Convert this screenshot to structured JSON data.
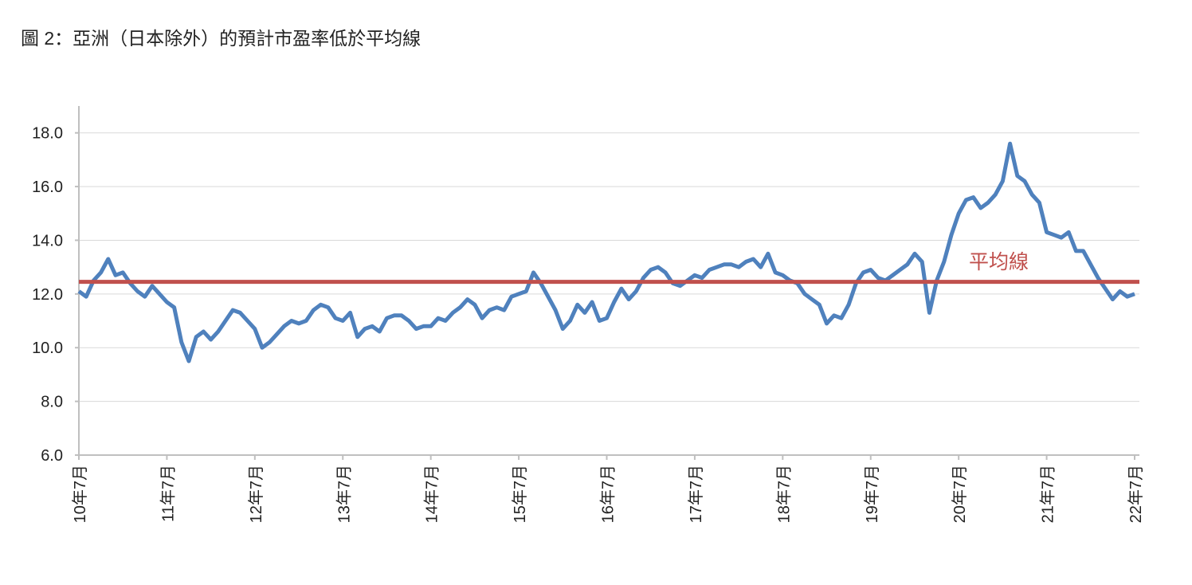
{
  "chart_data": {
    "type": "line",
    "title": "圖 2：亞洲（日本除外）的預計市盈率低於平均線",
    "categories": [
      "10年7月",
      null,
      null,
      null,
      null,
      null,
      null,
      null,
      null,
      null,
      null,
      null,
      "11年7月",
      null,
      null,
      null,
      null,
      null,
      null,
      null,
      null,
      null,
      null,
      null,
      "12年7月",
      null,
      null,
      null,
      null,
      null,
      null,
      null,
      null,
      null,
      null,
      null,
      "13年7月",
      null,
      null,
      null,
      null,
      null,
      null,
      null,
      null,
      null,
      null,
      null,
      "14年7月",
      null,
      null,
      null,
      null,
      null,
      null,
      null,
      null,
      null,
      null,
      null,
      "15年7月",
      null,
      null,
      null,
      null,
      null,
      null,
      null,
      null,
      null,
      null,
      null,
      "16年7月",
      null,
      null,
      null,
      null,
      null,
      null,
      null,
      null,
      null,
      null,
      null,
      "17年7月",
      null,
      null,
      null,
      null,
      null,
      null,
      null,
      null,
      null,
      null,
      null,
      "18年7月",
      null,
      null,
      null,
      null,
      null,
      null,
      null,
      null,
      null,
      null,
      null,
      "19年7月",
      null,
      null,
      null,
      null,
      null,
      null,
      null,
      null,
      null,
      null,
      null,
      "20年7月",
      null,
      null,
      null,
      null,
      null,
      null,
      null,
      null,
      null,
      null,
      null,
      "21年7月",
      null,
      null,
      null,
      null,
      null,
      null,
      null,
      null,
      null,
      null,
      null,
      "22年7月"
    ],
    "values": [
      12.1,
      11.9,
      12.5,
      12.8,
      13.3,
      12.7,
      12.8,
      12.4,
      12.1,
      11.9,
      12.3,
      12.0,
      11.7,
      11.5,
      10.2,
      9.5,
      10.4,
      10.6,
      10.3,
      10.6,
      11.0,
      11.4,
      11.3,
      11.0,
      10.7,
      10.0,
      10.2,
      10.5,
      10.8,
      11.0,
      10.9,
      11.0,
      11.4,
      11.6,
      11.5,
      11.1,
      11.0,
      11.3,
      10.4,
      10.7,
      10.8,
      10.6,
      11.1,
      11.2,
      11.2,
      11.0,
      10.7,
      10.8,
      10.8,
      11.1,
      11.0,
      11.3,
      11.5,
      11.8,
      11.6,
      11.1,
      11.4,
      11.5,
      11.4,
      11.9,
      12.0,
      12.1,
      12.8,
      12.4,
      11.9,
      11.4,
      10.7,
      11.0,
      11.6,
      11.3,
      11.7,
      11.0,
      11.1,
      11.7,
      12.2,
      11.8,
      12.1,
      12.6,
      12.9,
      13.0,
      12.8,
      12.4,
      12.3,
      12.5,
      12.7,
      12.6,
      12.9,
      13.0,
      13.1,
      13.1,
      13.0,
      13.2,
      13.3,
      13.0,
      13.5,
      12.8,
      12.7,
      12.5,
      12.4,
      12.0,
      11.8,
      11.6,
      10.9,
      11.2,
      11.1,
      11.6,
      12.4,
      12.8,
      12.9,
      12.6,
      12.5,
      12.7,
      12.9,
      13.1,
      13.5,
      13.2,
      11.3,
      12.5,
      13.2,
      14.2,
      15.0,
      15.5,
      15.6,
      15.2,
      15.4,
      15.7,
      16.2,
      17.6,
      16.4,
      16.2,
      15.7,
      15.4,
      14.3,
      14.2,
      14.1,
      14.3,
      13.6,
      13.6,
      13.1,
      12.6,
      12.2,
      11.8,
      12.1,
      11.9,
      12.0
    ],
    "color": "#4f81bd",
    "reference_line": {
      "label": "平均線",
      "value": 12.45,
      "color": "#c0504d"
    },
    "ylim": [
      6,
      19
    ],
    "yticks": [
      {
        "value": 6,
        "label": "6.0"
      },
      {
        "value": 8,
        "label": "8.0"
      },
      {
        "value": 10,
        "label": "10.0"
      },
      {
        "value": 12,
        "label": "12.0"
      },
      {
        "value": 14,
        "label": "14.0"
      },
      {
        "value": 16,
        "label": "16.0"
      },
      {
        "value": 18,
        "label": "18.0"
      }
    ],
    "grid": true
  }
}
